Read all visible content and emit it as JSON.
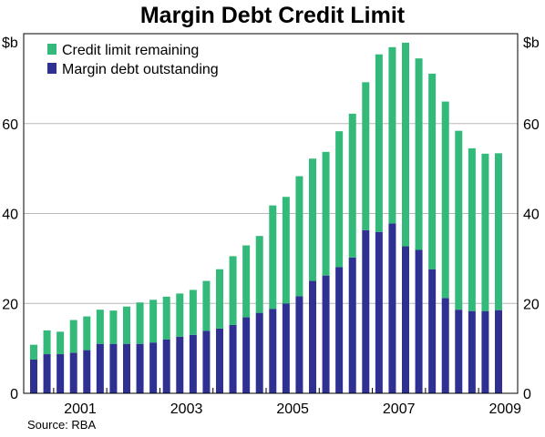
{
  "title": "Margin Debt Credit Limit",
  "source": "Source: RBA",
  "colors": {
    "credit_limit_remaining": "#33b97a",
    "margin_debt_outstanding": "#2e3192",
    "grid": "#b8b8b8",
    "axis": "#000000"
  },
  "chart_data": {
    "type": "bar",
    "stacked": true,
    "title": "Margin Debt Credit Limit",
    "unit_left": "$b",
    "unit_right": "$b",
    "ylim": [
      0,
      80
    ],
    "yticks": [
      0,
      20,
      40,
      60
    ],
    "xtick_labels": [
      "2001",
      "2003",
      "2005",
      "2007",
      "2009"
    ],
    "grid": true,
    "legend_position": "top-left",
    "x": [
      "Q3 2000",
      "Q4 2000",
      "Q1 2001",
      "Q2 2001",
      "Q3 2001",
      "Q4 2001",
      "Q1 2002",
      "Q2 2002",
      "Q3 2002",
      "Q4 2002",
      "Q1 2003",
      "Q2 2003",
      "Q3 2003",
      "Q4 2003",
      "Q1 2004",
      "Q2 2004",
      "Q3 2004",
      "Q4 2004",
      "Q1 2005",
      "Q2 2005",
      "Q3 2005",
      "Q4 2005",
      "Q1 2006",
      "Q2 2006",
      "Q3 2006",
      "Q4 2006",
      "Q1 2007",
      "Q2 2007",
      "Q3 2007",
      "Q4 2007",
      "Q1 2008",
      "Q2 2008",
      "Q3 2008",
      "Q4 2008",
      "Q1 2009",
      "Q2 2009"
    ],
    "series": [
      {
        "name": "Margin debt outstanding",
        "color": "#2e3192",
        "values": [
          7.5,
          8.7,
          8.7,
          9.0,
          9.6,
          11.0,
          11.0,
          11.0,
          11.0,
          11.3,
          12.0,
          12.6,
          13.0,
          13.9,
          14.4,
          15.2,
          16.9,
          17.9,
          18.8,
          20.0,
          21.6,
          25.0,
          26.2,
          28.1,
          30.2,
          36.3,
          35.9,
          37.8,
          32.7,
          31.9,
          27.6,
          21.2,
          18.6,
          18.3,
          18.3,
          18.5
        ]
      },
      {
        "name": "Credit limit remaining",
        "color": "#33b97a",
        "values": [
          3.3,
          5.3,
          5.0,
          7.3,
          7.5,
          7.6,
          7.4,
          8.3,
          9.2,
          9.5,
          9.5,
          9.6,
          10.0,
          11.1,
          13.2,
          15.3,
          16.0,
          17.1,
          23.0,
          23.7,
          26.7,
          27.2,
          27.5,
          30.2,
          32.0,
          32.9,
          39.5,
          39.2,
          45.3,
          42.6,
          43.5,
          43.7,
          39.8,
          36.2,
          35.0,
          34.9
        ]
      }
    ],
    "legend": [
      "Credit limit remaining",
      "Margin debt outstanding"
    ]
  }
}
